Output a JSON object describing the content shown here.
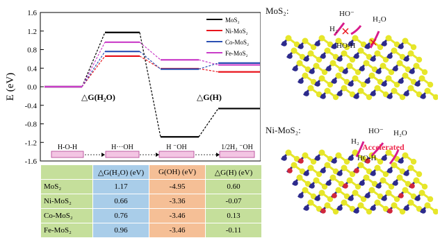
{
  "chart_data": {
    "type": "line",
    "ylabel": "E (eV)",
    "ylim": [
      -1.6,
      1.6
    ],
    "yticks": [
      "1.6",
      "1.2",
      "0.8",
      "0.4",
      "0.0",
      "-0.4",
      "-0.8",
      "-1.2",
      "-1.6"
    ],
    "ytick_values": [
      1.6,
      1.2,
      0.8,
      0.4,
      0.0,
      -0.4,
      -0.8,
      -1.2,
      -1.6
    ],
    "states": [
      "H-O-H",
      "H···OH",
      "H  ⁻OH",
      "1/2H₂ ⁻OH"
    ],
    "annotations": [
      "△G(H₂O)",
      "△G(H)"
    ],
    "legend_position": "top-right",
    "series": [
      {
        "name": "MoS₂",
        "color": "#000000",
        "values": [
          0,
          1.17,
          -1.08,
          -0.47
        ]
      },
      {
        "name": "Ni-MoS₂",
        "color": "#e8141c",
        "values": [
          0,
          0.66,
          0.39,
          0.32
        ]
      },
      {
        "name": "Co-MoS₂",
        "color": "#2a4fb3",
        "values": [
          0,
          0.76,
          0.38,
          0.51
        ]
      },
      {
        "name": "Fe-MoS₂",
        "color": "#c93cc8",
        "values": [
          0,
          0.96,
          0.58,
          0.47
        ]
      }
    ]
  },
  "table": {
    "headers": [
      "",
      "△G(H₂O) (eV)",
      "G(OH) (eV)",
      "△G(H) (eV)"
    ],
    "rows": [
      {
        "name": "MoS₂",
        "dgh2o": "1.17",
        "goh": "-4.95",
        "dgh": "0.60"
      },
      {
        "name": "Ni-MoS₂",
        "dgh2o": "0.66",
        "goh": "-3.36",
        "dgh": "-0.07"
      },
      {
        "name": "Co-MoS₂",
        "dgh2o": "0.76",
        "goh": "-3.46",
        "dgh": "0.13"
      },
      {
        "name": "Fe-MoS₂",
        "dgh2o": "0.96",
        "goh": "-3.46",
        "dgh": "-0.11"
      }
    ]
  },
  "panels": {
    "top": {
      "title": "MoS₂:",
      "labels": [
        "H₂",
        "HO⁻",
        "H₂O",
        "HO-H"
      ]
    },
    "bottom": {
      "title": "Ni-MoS₂:",
      "labels": [
        "H₂",
        "HO⁻",
        "H₂O",
        "HO-H"
      ],
      "note": "Accelerated"
    }
  },
  "colors": {
    "sulfur": "#e6e62a",
    "molybdenum": "#2c2a8c",
    "nickel": "#d0263c",
    "arrow": "#d81b8c",
    "cross": "#e8141c"
  }
}
